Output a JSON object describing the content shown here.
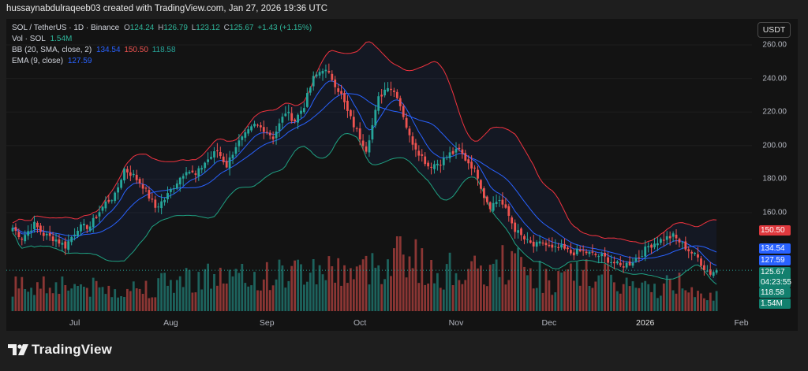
{
  "header": {
    "text": "hussaynabdulraqeeb03 created with TradingView.com, Jan 27, 2026 19:36 UTC"
  },
  "legend": {
    "symbol": "SOL / TetherUS · 1D · Binance",
    "o_label": "O",
    "o": "124.24",
    "h_label": "H",
    "h": "126.79",
    "l_label": "L",
    "l": "123.12",
    "c_label": "C",
    "c": "125.67",
    "change": "+1.43 (+1.15%)",
    "vol_label": "Vol · SOL",
    "vol": "1.54M",
    "bb_label": "BB (20, SMA, close, 2)",
    "bb_basis": "134.54",
    "bb_upper": "150.50",
    "bb_lower": "118.58",
    "ema_label": "EMA (9, close)",
    "ema": "127.59"
  },
  "currency_button": "USDT",
  "colors": {
    "up": "#26a69a",
    "down": "#ef5350",
    "bb_upper": "#f0333f",
    "bb_basis": "#2962ff",
    "bb_lower": "#1fa182",
    "ema": "#2962ff",
    "label_up": "#12806e",
    "label_blue": "#2962ff",
    "label_red": "#e0393e"
  },
  "badges": {
    "upper": "150.50",
    "basis": "134.54",
    "ema": "127.59",
    "price": "125.67",
    "countdown": "04:23:55",
    "lower": "118.58",
    "volume": "1.54M"
  },
  "logo": {
    "text": "TradingView",
    "icon": "tradingview-logo-icon"
  },
  "chart_data": {
    "type": "candlestick",
    "y_axis_labels": [
      "260.00",
      "240.00",
      "220.00",
      "200.00",
      "180.00",
      "160.00"
    ],
    "y_ticks": [
      260,
      240,
      220,
      200,
      180,
      160
    ],
    "x_ticks": [
      {
        "label": "Jul",
        "day": 20,
        "bold": false
      },
      {
        "label": "Aug",
        "day": 51,
        "bold": false
      },
      {
        "label": "Sep",
        "day": 82,
        "bold": false
      },
      {
        "label": "Oct",
        "day": 112,
        "bold": false
      },
      {
        "label": "Nov",
        "day": 143,
        "bold": false
      },
      {
        "label": "Dec",
        "day": 173,
        "bold": false
      },
      {
        "label": "2026",
        "day": 204,
        "bold": true
      },
      {
        "label": "Feb",
        "day": 235,
        "bold": false
      }
    ],
    "close_anchors": [
      [
        0,
        151
      ],
      [
        3,
        145
      ],
      [
        7,
        153
      ],
      [
        10,
        147
      ],
      [
        14,
        144
      ],
      [
        17,
        140
      ],
      [
        21,
        151
      ],
      [
        25,
        152
      ],
      [
        27,
        158
      ],
      [
        30,
        166
      ],
      [
        33,
        170
      ],
      [
        36,
        186
      ],
      [
        39,
        182
      ],
      [
        42,
        176
      ],
      [
        46,
        163
      ],
      [
        49,
        168
      ],
      [
        52,
        176
      ],
      [
        56,
        186
      ],
      [
        59,
        182
      ],
      [
        62,
        190
      ],
      [
        66,
        197
      ],
      [
        69,
        188
      ],
      [
        72,
        200
      ],
      [
        75,
        206
      ],
      [
        78,
        212
      ],
      [
        81,
        210
      ],
      [
        84,
        205
      ],
      [
        88,
        220
      ],
      [
        91,
        215
      ],
      [
        94,
        224
      ],
      [
        97,
        240
      ],
      [
        100,
        246
      ],
      [
        103,
        240
      ],
      [
        106,
        230
      ],
      [
        108,
        220
      ],
      [
        110,
        212
      ],
      [
        112,
        205
      ],
      [
        114,
        198
      ],
      [
        116,
        212
      ],
      [
        118,
        228
      ],
      [
        121,
        236
      ],
      [
        124,
        230
      ],
      [
        126,
        218
      ],
      [
        128,
        205
      ],
      [
        131,
        196
      ],
      [
        134,
        188
      ],
      [
        138,
        190
      ],
      [
        141,
        195
      ],
      [
        144,
        197
      ],
      [
        146,
        192
      ],
      [
        148,
        188
      ],
      [
        150,
        182
      ],
      [
        152,
        170
      ],
      [
        154,
        164
      ],
      [
        157,
        168
      ],
      [
        160,
        158
      ],
      [
        162,
        150
      ],
      [
        165,
        144
      ],
      [
        168,
        140
      ],
      [
        171,
        142
      ],
      [
        174,
        138
      ],
      [
        177,
        139
      ],
      [
        180,
        136
      ],
      [
        184,
        137
      ],
      [
        187,
        135
      ],
      [
        190,
        134
      ],
      [
        193,
        131
      ],
      [
        196,
        128
      ],
      [
        199,
        130
      ],
      [
        202,
        134
      ],
      [
        205,
        140
      ],
      [
        208,
        143
      ],
      [
        211,
        145
      ],
      [
        213,
        146
      ],
      [
        216,
        141
      ],
      [
        219,
        136
      ],
      [
        221,
        133
      ],
      [
        223,
        127
      ],
      [
        225,
        124
      ],
      [
        227,
        126
      ]
    ],
    "volume_anchors": [
      [
        0,
        0.35
      ],
      [
        15,
        0.4
      ],
      [
        30,
        0.3
      ],
      [
        45,
        0.35
      ],
      [
        60,
        0.5
      ],
      [
        75,
        0.45
      ],
      [
        90,
        0.55
      ],
      [
        100,
        0.6
      ],
      [
        112,
        0.55
      ],
      [
        120,
        0.7
      ],
      [
        125,
        0.95
      ],
      [
        135,
        0.5
      ],
      [
        143,
        0.6
      ],
      [
        152,
        0.5
      ],
      [
        160,
        0.7
      ],
      [
        165,
        0.6
      ],
      [
        175,
        0.4
      ],
      [
        185,
        0.55
      ],
      [
        195,
        0.4
      ],
      [
        205,
        0.3
      ],
      [
        215,
        0.4
      ],
      [
        220,
        0.35
      ],
      [
        227,
        0.2
      ]
    ],
    "last": {
      "open": 124.24,
      "high": 126.79,
      "low": 123.12,
      "close": 125.67,
      "volume": "1.54M"
    },
    "bollinger": {
      "period": 20,
      "mult": 2,
      "upper": 150.5,
      "basis": 134.54,
      "lower": 118.58
    },
    "ema": {
      "period": 9,
      "value": 127.59
    }
  }
}
